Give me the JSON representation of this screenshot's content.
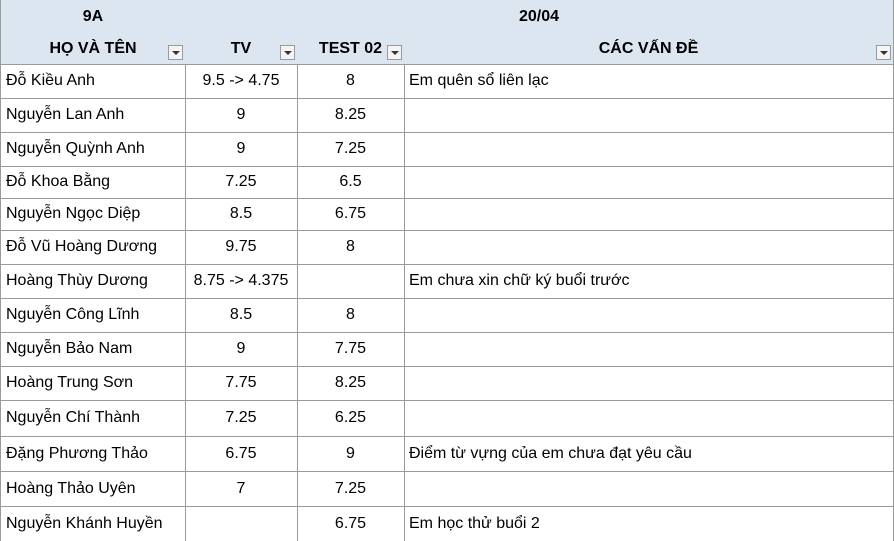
{
  "header": {
    "class": "9A",
    "date": "20/04",
    "columns": [
      "HỌ VÀ TÊN",
      "TV",
      "TEST 02",
      "CÁC VẤN ĐỀ"
    ]
  },
  "rows": [
    {
      "name": "Đỗ Kiều Anh",
      "tv": "9.5 -> 4.75",
      "test02": 8,
      "issue": "Em quên sổ liên lạc"
    },
    {
      "name": "Nguyễn Lan Anh",
      "tv": 9,
      "test02": 8.25
    },
    {
      "name": "Nguyễn Quỳnh Anh",
      "tv": 9,
      "test02": 7.25
    },
    {
      "name": "Đỗ Khoa Bằng",
      "tv": 7.25,
      "test02": 6.5
    },
    {
      "name": "Nguyễn Ngọc Diệp",
      "tv": 8.5,
      "test02": 6.75
    },
    {
      "name": "Đỗ Vũ Hoàng Dương",
      "tv": 9.75,
      "test02": 8
    },
    {
      "name": "Hoàng Thùy Dương",
      "tv": "8.75 -> 4.375",
      "issue": "Em chưa xin chữ ký buổi trước"
    },
    {
      "name": "Nguyễn Công Lĩnh",
      "tv": 8.5,
      "test02": 8
    },
    {
      "name": "Nguyễn Bảo Nam",
      "tv": 9,
      "test02": 7.75
    },
    {
      "name": "Hoàng Trung Sơn",
      "tv": 7.75,
      "test02": 8.25
    },
    {
      "name": "Nguyễn Chí Thành",
      "tv": 7.25,
      "test02": 6.25
    },
    {
      "name": "Đặng Phương Thảo",
      "tv": 6.75,
      "test02": 9,
      "issue": "Điểm từ vựng của em chưa đạt yêu cầu"
    },
    {
      "name": "Hoàng Thảo Uyên",
      "tv": 7,
      "test02": 7.25
    },
    {
      "name": "Nguyễn Khánh Huyền",
      "test02": 6.75,
      "issue": "Em học thử buổi 2"
    }
  ]
}
